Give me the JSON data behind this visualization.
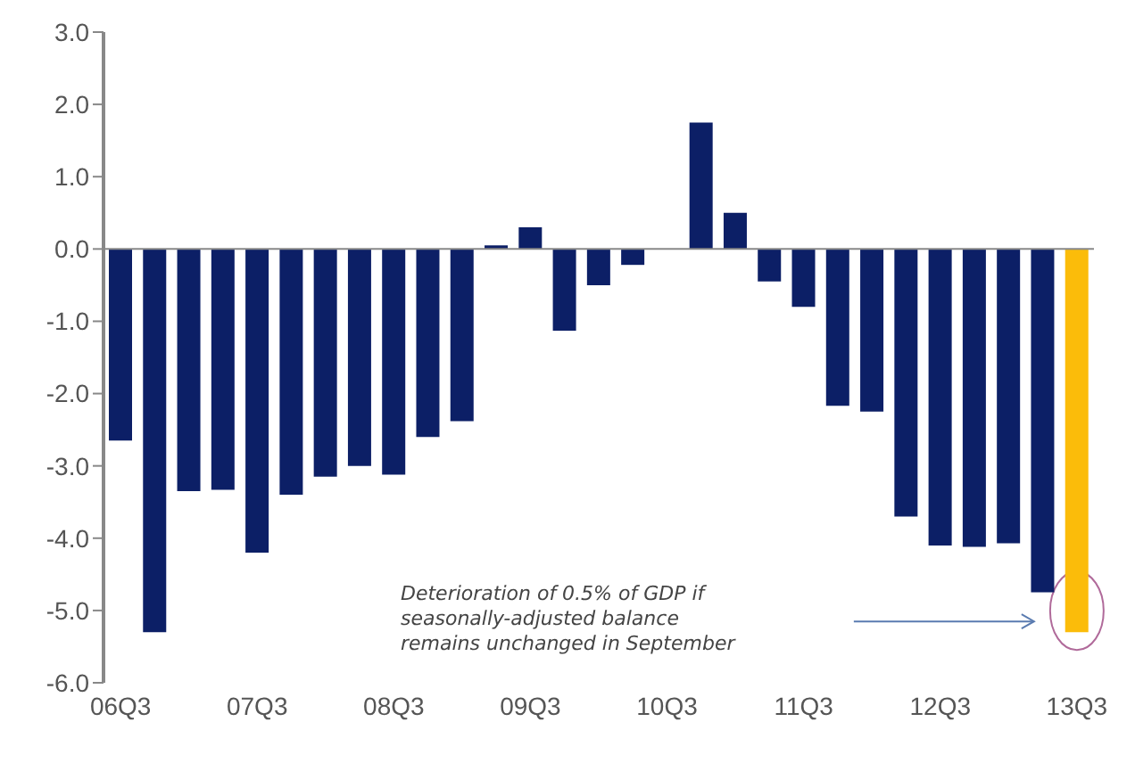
{
  "chart_data": {
    "type": "bar",
    "categories": [
      "06Q3",
      null,
      null,
      null,
      "07Q3",
      null,
      null,
      null,
      "08Q3",
      null,
      null,
      null,
      "09Q3",
      null,
      null,
      null,
      "10Q3",
      null,
      null,
      null,
      "11Q3",
      null,
      null,
      null,
      "12Q3",
      null,
      null,
      null,
      "13Q3"
    ],
    "values": [
      -2.65,
      -5.3,
      -3.35,
      -3.33,
      -4.2,
      -3.4,
      -3.15,
      -3.0,
      -3.12,
      -2.6,
      -2.38,
      0.05,
      0.3,
      -1.13,
      -0.5,
      -0.22,
      0,
      1.75,
      0.5,
      -0.45,
      -0.8,
      -2.17,
      -2.25,
      -3.7,
      -4.1,
      -4.12,
      -4.07,
      -4.75,
      -5.3
    ],
    "colors": [
      "#0c1f66",
      "#0c1f66",
      "#0c1f66",
      "#0c1f66",
      "#0c1f66",
      "#0c1f66",
      "#0c1f66",
      "#0c1f66",
      "#0c1f66",
      "#0c1f66",
      "#0c1f66",
      "#0c1f66",
      "#0c1f66",
      "#0c1f66",
      "#0c1f66",
      "#0c1f66",
      "#0c1f66",
      "#0c1f66",
      "#0c1f66",
      "#0c1f66",
      "#0c1f66",
      "#0c1f66",
      "#0c1f66",
      "#0c1f66",
      "#0c1f66",
      "#0c1f66",
      "#0c1f66",
      "#0c1f66",
      "#fbbc0a"
    ],
    "ylim": [
      -6,
      3
    ],
    "yticks": [
      {
        "value": -6,
        "label": "-6.0"
      },
      {
        "value": -5,
        "label": "-5.0"
      },
      {
        "value": -4,
        "label": "-4.0"
      },
      {
        "value": -3,
        "label": "-3.0"
      },
      {
        "value": -2,
        "label": "-2.0"
      },
      {
        "value": -1,
        "label": "-1.0"
      },
      {
        "value": 0,
        "label": "0.0"
      },
      {
        "value": 1,
        "label": "1.0"
      },
      {
        "value": 2,
        "label": "2.0"
      },
      {
        "value": 3,
        "label": "3.0"
      }
    ],
    "grid": false,
    "ref_lines": [
      {
        "axis": "y",
        "value": 0,
        "color": "#888888"
      }
    ],
    "annotations": [
      "Deterioration of 0.5% of GDP if\nseasonally-adjusted balance\nremains unchanged in September"
    ]
  }
}
